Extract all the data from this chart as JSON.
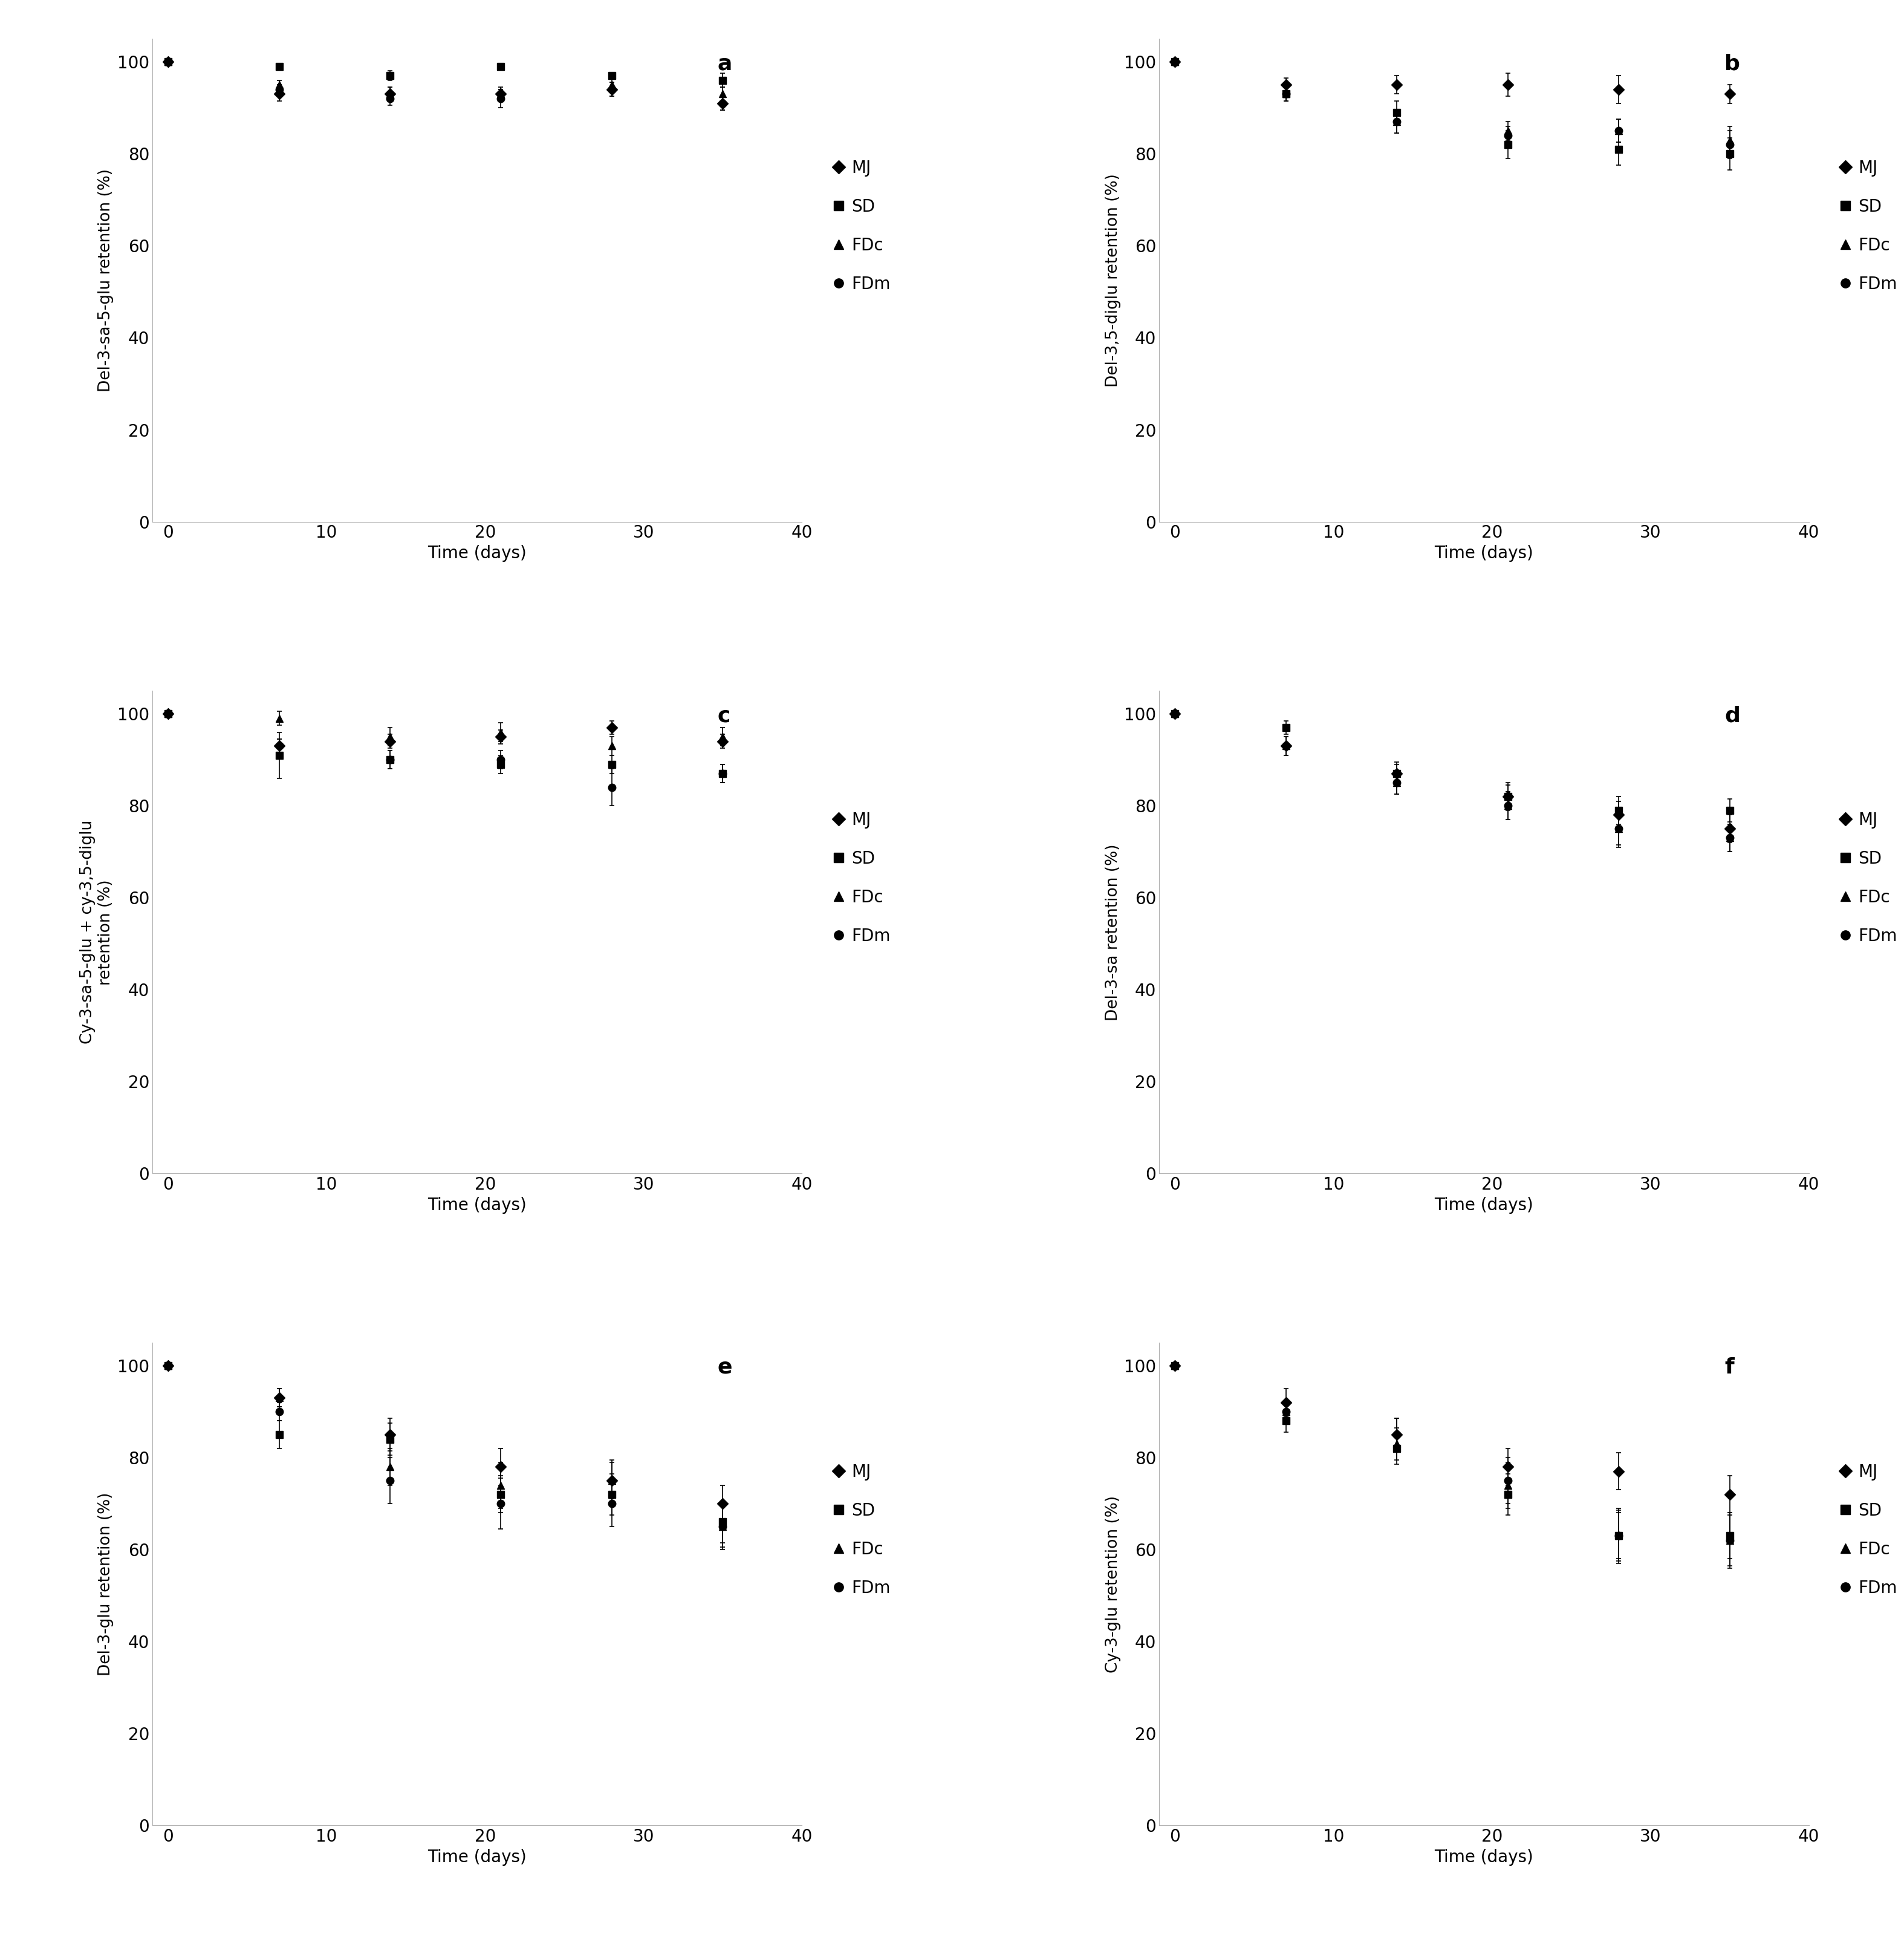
{
  "panels": [
    {
      "label": "a",
      "ylabel": "Del-3-sa-5-glu retention (%)",
      "ylim": [
        0,
        105
      ],
      "yticks": [
        0,
        20,
        40,
        60,
        80,
        100
      ],
      "series": {
        "MJ": {
          "x": [
            0,
            7,
            14,
            21,
            28,
            35
          ],
          "y": [
            100,
            93,
            93,
            93,
            94,
            91
          ],
          "yerr": [
            0,
            1.5,
            1.5,
            1.0,
            1.5,
            1.5
          ]
        },
        "SD": {
          "x": [
            0,
            7,
            14,
            21,
            28,
            35
          ],
          "y": [
            100,
            99,
            97,
            99,
            97,
            96
          ],
          "yerr": [
            0,
            0.5,
            1.0,
            0.5,
            0.5,
            1.5
          ]
        },
        "FDc": {
          "x": [
            0,
            7,
            14,
            21,
            28,
            35
          ],
          "y": [
            100,
            95,
            93,
            93,
            95,
            93
          ],
          "yerr": [
            0,
            1.0,
            1.5,
            1.5,
            1.5,
            1.5
          ]
        },
        "FDm": {
          "x": [
            0,
            7,
            14,
            21,
            28,
            35
          ],
          "y": [
            100,
            94,
            92,
            92,
            94,
            91
          ],
          "yerr": [
            0,
            1.0,
            1.5,
            2.0,
            1.5,
            1.5
          ]
        }
      }
    },
    {
      "label": "b",
      "ylabel": "Del-3,5-diglu retention (%)",
      "ylim": [
        0,
        105
      ],
      "yticks": [
        0,
        20,
        40,
        60,
        80,
        100
      ],
      "series": {
        "MJ": {
          "x": [
            0,
            7,
            14,
            21,
            28,
            35
          ],
          "y": [
            100,
            95,
            95,
            95,
            94,
            93
          ],
          "yerr": [
            0,
            1.5,
            2.0,
            2.5,
            3.0,
            2.0
          ]
        },
        "SD": {
          "x": [
            0,
            7,
            14,
            21,
            28,
            35
          ],
          "y": [
            100,
            93,
            89,
            82,
            81,
            80
          ],
          "yerr": [
            0,
            1.5,
            2.5,
            3.0,
            3.5,
            3.5
          ]
        },
        "FDc": {
          "x": [
            0,
            7,
            14,
            21,
            28,
            35
          ],
          "y": [
            100,
            93,
            87,
            85,
            85,
            83
          ],
          "yerr": [
            0,
            1.5,
            2.5,
            2.0,
            2.5,
            3.0
          ]
        },
        "FDm": {
          "x": [
            0,
            7,
            14,
            21,
            28,
            35
          ],
          "y": [
            100,
            93,
            87,
            84,
            85,
            82
          ],
          "yerr": [
            0,
            1.5,
            2.5,
            2.0,
            2.5,
            3.0
          ]
        }
      }
    },
    {
      "label": "c",
      "ylabel": "Cy-3-sa-5-glu + cy-3,5-diglu\nretention (%)",
      "ylim": [
        0,
        105
      ],
      "yticks": [
        0,
        20,
        40,
        60,
        80,
        100
      ],
      "series": {
        "MJ": {
          "x": [
            0,
            7,
            14,
            21,
            28,
            35
          ],
          "y": [
            100,
            93,
            94,
            95,
            97,
            94
          ],
          "yerr": [
            0,
            1.5,
            1.5,
            1.5,
            1.5,
            1.5
          ]
        },
        "SD": {
          "x": [
            0,
            7,
            14,
            21,
            28,
            35
          ],
          "y": [
            100,
            91,
            90,
            89,
            89,
            87
          ],
          "yerr": [
            0,
            5.0,
            2.0,
            2.0,
            2.0,
            2.0
          ]
        },
        "FDc": {
          "x": [
            0,
            7,
            14,
            21,
            28,
            35
          ],
          "y": [
            100,
            99,
            95,
            96,
            93,
            95
          ],
          "yerr": [
            0,
            1.5,
            2.0,
            2.0,
            2.0,
            2.0
          ]
        },
        "FDm": {
          "x": [
            0,
            7,
            14,
            21,
            28,
            35
          ],
          "y": [
            100,
            93,
            90,
            90,
            84,
            87
          ],
          "yerr": [
            0,
            1.5,
            2.0,
            2.0,
            4.0,
            2.0
          ]
        }
      }
    },
    {
      "label": "d",
      "ylabel": "Del-3-sa retention (%)",
      "ylim": [
        0,
        105
      ],
      "yticks": [
        0,
        20,
        40,
        60,
        80,
        100
      ],
      "series": {
        "MJ": {
          "x": [
            0,
            7,
            14,
            21,
            28,
            35
          ],
          "y": [
            100,
            93,
            87,
            82,
            78,
            75
          ],
          "yerr": [
            0,
            2.0,
            2.5,
            3.0,
            3.0,
            3.0
          ]
        },
        "SD": {
          "x": [
            0,
            7,
            14,
            21,
            28,
            35
          ],
          "y": [
            100,
            97,
            87,
            82,
            79,
            79
          ],
          "yerr": [
            0,
            1.5,
            2.0,
            2.5,
            3.0,
            2.5
          ]
        },
        "FDc": {
          "x": [
            0,
            7,
            14,
            21,
            28,
            35
          ],
          "y": [
            100,
            93,
            85,
            80,
            75,
            73
          ],
          "yerr": [
            0,
            2.0,
            2.5,
            3.0,
            3.5,
            3.0
          ]
        },
        "FDm": {
          "x": [
            0,
            7,
            14,
            21,
            28,
            35
          ],
          "y": [
            100,
            93,
            85,
            80,
            75,
            73
          ],
          "yerr": [
            0,
            2.0,
            2.5,
            3.0,
            4.0,
            3.0
          ]
        }
      }
    },
    {
      "label": "e",
      "ylabel": "Del-3-glu retention (%)",
      "ylim": [
        0,
        105
      ],
      "yticks": [
        0,
        20,
        40,
        60,
        80,
        100
      ],
      "series": {
        "MJ": {
          "x": [
            0,
            7,
            14,
            21,
            28,
            35
          ],
          "y": [
            100,
            93,
            85,
            78,
            75,
            70
          ],
          "yerr": [
            0,
            2.0,
            3.5,
            4.0,
            4.0,
            4.0
          ]
        },
        "SD": {
          "x": [
            0,
            7,
            14,
            21,
            28,
            35
          ],
          "y": [
            100,
            85,
            84,
            72,
            72,
            66
          ],
          "yerr": [
            0,
            3.0,
            3.5,
            4.0,
            4.5,
            4.5
          ]
        },
        "FDc": {
          "x": [
            0,
            7,
            14,
            21,
            28,
            35
          ],
          "y": [
            100,
            93,
            78,
            74,
            75,
            65
          ],
          "yerr": [
            0,
            2.0,
            4.0,
            5.0,
            4.5,
            4.5
          ]
        },
        "FDm": {
          "x": [
            0,
            7,
            14,
            21,
            28,
            35
          ],
          "y": [
            100,
            90,
            75,
            70,
            70,
            65
          ],
          "yerr": [
            0,
            2.0,
            5.0,
            5.5,
            5.0,
            5.0
          ]
        }
      }
    },
    {
      "label": "f",
      "ylabel": "Cy-3-glu retention (%)",
      "ylim": [
        0,
        105
      ],
      "yticks": [
        0,
        20,
        40,
        60,
        80,
        100
      ],
      "series": {
        "MJ": {
          "x": [
            0,
            7,
            14,
            21,
            28,
            35
          ],
          "y": [
            100,
            92,
            85,
            78,
            77,
            72
          ],
          "yerr": [
            0,
            3.0,
            3.5,
            4.0,
            4.0,
            4.0
          ]
        },
        "SD": {
          "x": [
            0,
            7,
            14,
            21,
            28,
            35
          ],
          "y": [
            100,
            88,
            82,
            72,
            63,
            63
          ],
          "yerr": [
            0,
            2.5,
            3.5,
            4.5,
            5.0,
            5.0
          ]
        },
        "FDc": {
          "x": [
            0,
            7,
            14,
            21,
            28,
            35
          ],
          "y": [
            100,
            90,
            83,
            74,
            63,
            62
          ],
          "yerr": [
            0,
            2.5,
            3.5,
            5.0,
            5.5,
            5.5
          ]
        },
        "FDm": {
          "x": [
            0,
            7,
            14,
            21,
            28,
            35
          ],
          "y": [
            100,
            90,
            85,
            75,
            63,
            62
          ],
          "yerr": [
            0,
            2.5,
            3.5,
            5.0,
            6.0,
            6.0
          ]
        }
      }
    }
  ],
  "markers": {
    "MJ": "D",
    "SD": "s",
    "FDc": "^",
    "FDm": "o"
  },
  "marker_size": 9,
  "color": "black",
  "xlabel": "Time (days)",
  "xlim": [
    -1,
    40
  ],
  "xticks": [
    0,
    10,
    20,
    30,
    40
  ],
  "legend_labels": [
    "MJ",
    "SD",
    "FDc",
    "FDm"
  ],
  "tick_fontsize": 20,
  "label_fontsize": 20,
  "legend_fontsize": 20,
  "panel_label_fontsize": 26
}
